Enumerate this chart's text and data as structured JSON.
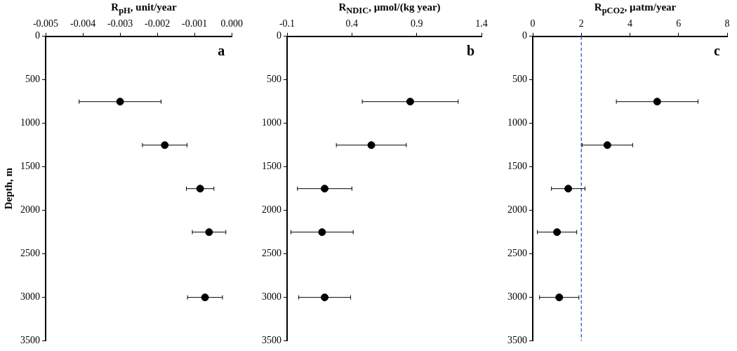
{
  "chart_data": [
    {
      "type": "scatter",
      "title": "R$_{pH}$, unit/year",
      "ylabel": "Depth, m",
      "annotations": [
        "a"
      ],
      "marker": "circle",
      "x": [
        -0.003,
        -0.0018,
        -0.00085,
        -0.00061,
        -0.00072
      ],
      "series": [
        {
          "color": "#000000",
          "values": [
            750,
            1250,
            1750,
            2250,
            3000
          ],
          "xerrors": [
            0.0011,
            0.0006,
            0.00037,
            0.00045,
            0.00047
          ]
        }
      ],
      "xlim": [
        -0.005,
        0
      ],
      "xticks": [
        -0.005,
        -0.004,
        -0.003,
        -0.002,
        -0.001,
        {
          "value": 0,
          "label": "0.000"
        }
      ],
      "ylim": [
        3500,
        0
      ],
      "yticks": [
        0,
        500,
        1000,
        1500,
        2000,
        2500,
        3000,
        3500
      ]
    },
    {
      "type": "scatter",
      "title": "R$_{NDIC}$,  µmol/(kg year)",
      "annotations": [
        "b"
      ],
      "marker": "circle",
      "x": [
        0.85,
        0.55,
        0.19,
        0.17,
        0.19
      ],
      "series": [
        {
          "color": "#000000",
          "values": [
            750,
            1250,
            1750,
            2250,
            3000
          ],
          "xerrors": [
            0.37,
            0.27,
            0.21,
            0.24,
            0.2
          ]
        }
      ],
      "xlim": [
        -0.1,
        1.4
      ],
      "xticks": [
        -0.1,
        0.4,
        0.9,
        1.4
      ],
      "ylim": [
        3500,
        0
      ],
      "yticks": [
        0,
        500,
        1000,
        1500,
        2000,
        2500,
        3000,
        3500
      ]
    },
    {
      "type": "scatter",
      "title": "R$_{pCO2}$, µatm/year",
      "annotations": [
        "c"
      ],
      "marker": "circle",
      "x": [
        5.12,
        3.07,
        1.46,
        1.0,
        1.09
      ],
      "series": [
        {
          "color": "#000000",
          "values": [
            750,
            1250,
            1750,
            2250,
            3000
          ],
          "xerrors": [
            1.68,
            1.04,
            0.69,
            0.81,
            0.81
          ]
        }
      ],
      "xlim": [
        0,
        8
      ],
      "xticks": [
        0,
        2,
        4,
        6,
        8
      ],
      "ylim": [
        3500,
        0
      ],
      "yticks": [
        0,
        500,
        1000,
        1500,
        2000,
        2500,
        3000,
        3500
      ],
      "ref_lines": [
        {
          "axis": "x",
          "value": 2,
          "color": "#4472c4",
          "line_style": "dashed"
        }
      ]
    }
  ]
}
